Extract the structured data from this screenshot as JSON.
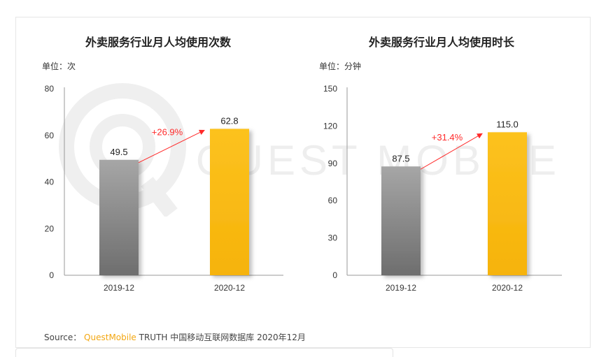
{
  "source": {
    "prefix": "Source：",
    "brand": "QuestMobile",
    "suffix": "TRUTH 中国移动互联网数据库 2020年12月"
  },
  "watermark": "QUEST MOBILE",
  "colors": {
    "gray_top": "#a6a6a6",
    "gray_bottom": "#6e6e6e",
    "gold": "#fbbd12",
    "arrow": "#ff2a2a"
  },
  "chart_data": [
    {
      "type": "bar",
      "title": "外卖服务行业月人均使用次数",
      "unit": "单位：次",
      "categories": [
        "2019-12",
        "2020-12"
      ],
      "values": [
        49.5,
        62.8
      ],
      "value_labels": [
        "49.5",
        "62.8"
      ],
      "ylim": [
        0,
        80
      ],
      "yticks": [
        0,
        20,
        40,
        60,
        80
      ],
      "ytick_labels": [
        "0",
        "20",
        "40",
        "60",
        "80"
      ],
      "growth_label": "+26.9%"
    },
    {
      "type": "bar",
      "title": "外卖服务行业月人均使用时长",
      "unit": "单位：分钟",
      "categories": [
        "2019-12",
        "2020-12"
      ],
      "values": [
        87.5,
        115.0
      ],
      "value_labels": [
        "87.5",
        "115.0"
      ],
      "ylim": [
        0,
        150
      ],
      "yticks": [
        0,
        30,
        60,
        90,
        120,
        150
      ],
      "ytick_labels": [
        "0",
        "30",
        "60",
        "90",
        "120",
        "150"
      ],
      "growth_label": "+31.4%"
    }
  ]
}
